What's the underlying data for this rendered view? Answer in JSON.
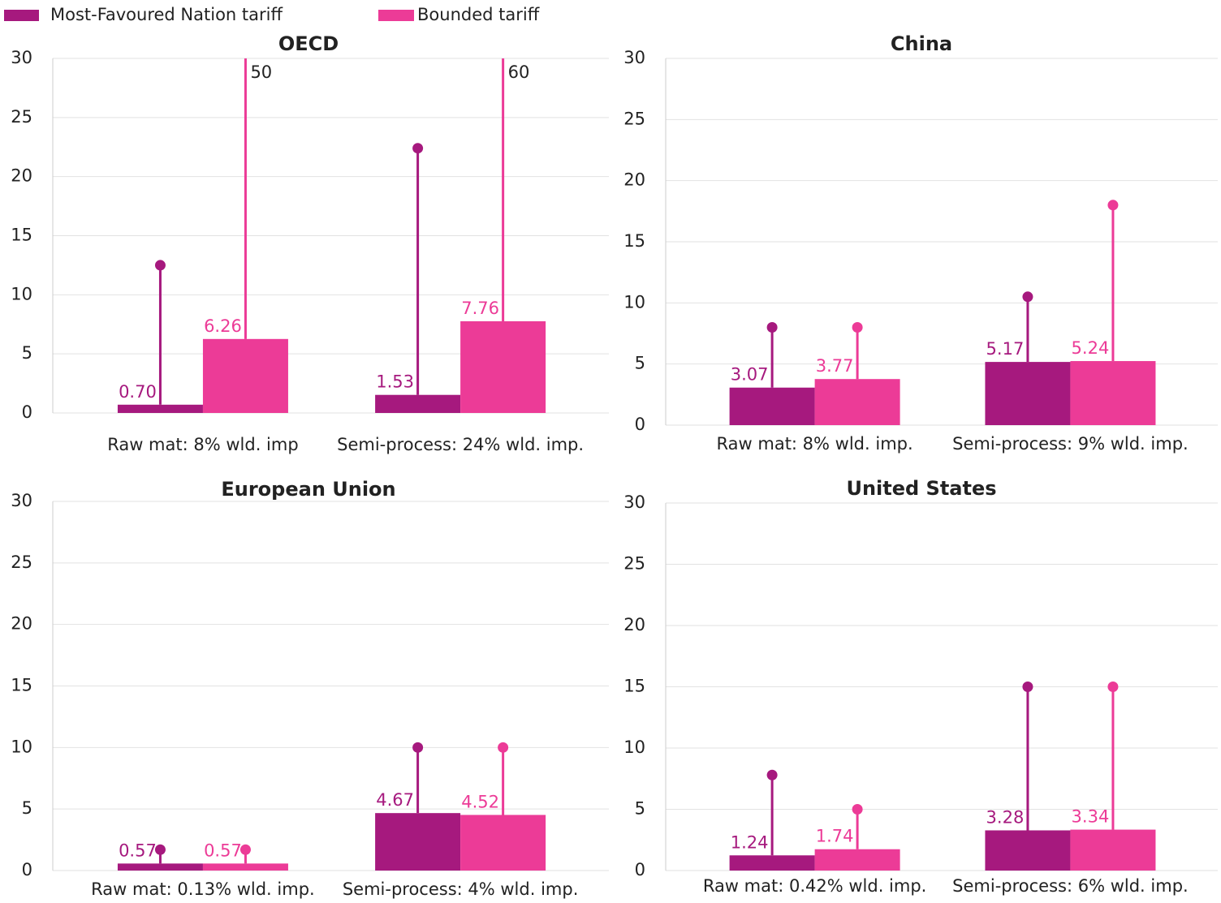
{
  "legend": [
    {
      "name": "Most-Favoured Nation tariff",
      "color": "#a6197e"
    },
    {
      "name": "Bounded tariff",
      "color": "#ec3b97"
    }
  ],
  "chart_data": [
    {
      "type": "bar",
      "title": "OECD",
      "categories": [
        "Raw mat: 8% wld. imp",
        "Semi-process: 24% wld. imp."
      ],
      "ylim": [
        0,
        30
      ],
      "yticks": [
        0,
        5,
        10,
        15,
        20,
        25,
        30
      ],
      "grid": true,
      "series": [
        {
          "color": "#a6197e",
          "values": [
            0.7,
            1.53
          ],
          "value_labels": [
            "0.70",
            "1.53"
          ],
          "max": [
            12.5,
            22.4
          ]
        },
        {
          "color": "#ec3b97",
          "values": [
            6.26,
            7.76
          ],
          "value_labels": [
            "6.26",
            "7.76"
          ],
          "max": [
            50,
            60
          ]
        }
      ]
    },
    {
      "type": "bar",
      "title": "China",
      "categories": [
        "Raw mat: 8% wld. imp.",
        "Semi-process: 9% wld. imp."
      ],
      "ylim": [
        0,
        30
      ],
      "yticks": [
        0,
        5,
        10,
        15,
        20,
        25,
        30
      ],
      "grid": true,
      "series": [
        {
          "color": "#a6197e",
          "values": [
            3.07,
            5.17
          ],
          "value_labels": [
            "3.07",
            "5.17"
          ],
          "max": [
            8,
            10.5
          ]
        },
        {
          "color": "#ec3b97",
          "values": [
            3.77,
            5.24
          ],
          "value_labels": [
            "3.77",
            "5.24"
          ],
          "max": [
            8,
            18
          ]
        }
      ]
    },
    {
      "type": "bar",
      "title": "European Union",
      "categories": [
        "Raw mat: 0.13% wld. imp.",
        "Semi-process: 4% wld. imp."
      ],
      "ylim": [
        0,
        30
      ],
      "yticks": [
        0,
        5,
        10,
        15,
        20,
        25,
        30
      ],
      "grid": true,
      "series": [
        {
          "color": "#a6197e",
          "values": [
            0.57,
            4.67
          ],
          "value_labels": [
            "0.57",
            "4.67"
          ],
          "max": [
            1.7,
            10
          ]
        },
        {
          "color": "#ec3b97",
          "values": [
            0.57,
            4.52
          ],
          "value_labels": [
            "0.57",
            "4.52"
          ],
          "max": [
            1.7,
            10
          ]
        }
      ]
    },
    {
      "type": "bar",
      "title": "United States",
      "categories": [
        "Raw mat: 0.42% wld. imp.",
        "Semi-process: 6% wld. imp."
      ],
      "ylim": [
        0,
        30
      ],
      "yticks": [
        0,
        5,
        10,
        15,
        20,
        25,
        30
      ],
      "grid": true,
      "series": [
        {
          "color": "#a6197e",
          "values": [
            1.24,
            3.28
          ],
          "value_labels": [
            "1.24",
            "3.28"
          ],
          "max": [
            7.8,
            15
          ]
        },
        {
          "color": "#ec3b97",
          "values": [
            1.74,
            3.34
          ],
          "value_labels": [
            "1.74",
            "3.34"
          ],
          "max": [
            5,
            15
          ]
        }
      ]
    }
  ]
}
